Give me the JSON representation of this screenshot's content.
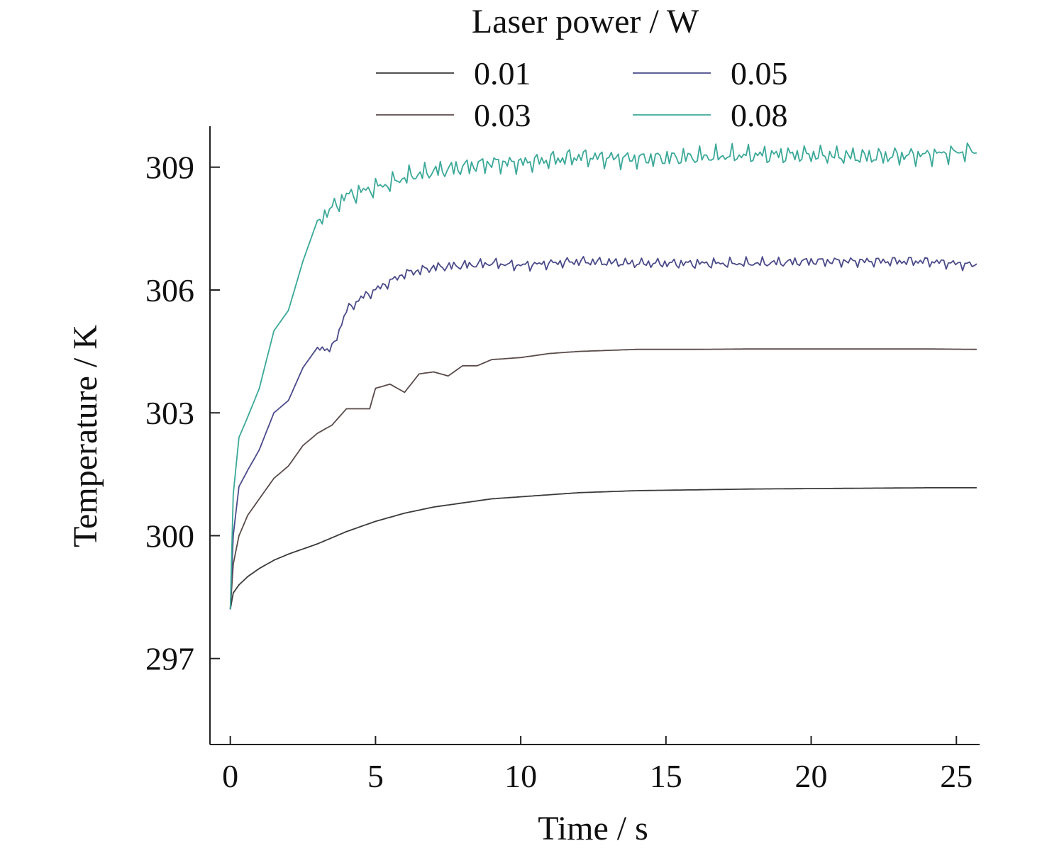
{
  "chart_data": {
    "type": "line",
    "title": "",
    "xlabel": "Time / s",
    "ylabel": "Temperature / K",
    "xlim": [
      -0.7,
      25.8
    ],
    "ylim": [
      294.9,
      310.0
    ],
    "xticks": [
      0,
      5,
      10,
      15,
      20,
      25
    ],
    "yticks": [
      297,
      300,
      303,
      306,
      309
    ],
    "grid": false,
    "legend": {
      "title": "Laser power / W",
      "placement": "top-center",
      "columns": 2,
      "entries": [
        "0.01",
        "0.05",
        "0.03",
        "0.08"
      ]
    },
    "series": [
      {
        "name": "0.01",
        "color": "#3a3a3a",
        "x": [
          0,
          0.1,
          0.3,
          0.6,
          1,
          1.5,
          2,
          3,
          4,
          5,
          6,
          7,
          8,
          9,
          10,
          12,
          14,
          16,
          18,
          20,
          22,
          24,
          25.7
        ],
        "y": [
          298.2,
          298.6,
          298.8,
          299.0,
          299.2,
          299.4,
          299.55,
          299.8,
          300.1,
          300.35,
          300.55,
          300.7,
          300.8,
          300.9,
          300.95,
          301.05,
          301.1,
          301.12,
          301.14,
          301.15,
          301.16,
          301.17,
          301.17
        ]
      },
      {
        "name": "0.03",
        "color": "#5a4a4a",
        "x": [
          0,
          0.1,
          0.3,
          0.6,
          1,
          1.5,
          2,
          2.5,
          3,
          3.5,
          4,
          4.5,
          4.8,
          5,
          5.5,
          6,
          6.5,
          7,
          7.5,
          8,
          8.5,
          9,
          10,
          11,
          12,
          14,
          16,
          18,
          20,
          22,
          24,
          25.7
        ],
        "y": [
          298.2,
          299.3,
          300.0,
          300.5,
          300.9,
          301.4,
          301.7,
          302.2,
          302.5,
          302.7,
          303.1,
          303.1,
          303.1,
          303.6,
          303.7,
          303.5,
          303.95,
          304.0,
          303.9,
          304.15,
          304.15,
          304.3,
          304.35,
          304.45,
          304.5,
          304.55,
          304.55,
          304.56,
          304.56,
          304.56,
          304.56,
          304.55
        ]
      },
      {
        "name": "0.05",
        "color": "#4a4a8a",
        "x": [
          0,
          0.1,
          0.3,
          0.6,
          1,
          1.5,
          2,
          2.5,
          3,
          3.5,
          4,
          4.5,
          5,
          5.5,
          6,
          7,
          8,
          9,
          10,
          12,
          14,
          16,
          18,
          20,
          22,
          24,
          25.7
        ],
        "y": [
          298.2,
          300.0,
          301.2,
          301.6,
          302.1,
          303.0,
          303.3,
          304.1,
          304.6,
          304.55,
          305.5,
          305.8,
          306.0,
          306.2,
          306.4,
          306.55,
          306.6,
          306.65,
          306.6,
          306.7,
          306.65,
          306.65,
          306.65,
          306.7,
          306.7,
          306.7,
          306.6
        ]
      },
      {
        "name": "0.08",
        "color": "#3aa898",
        "x": [
          0,
          0.1,
          0.3,
          0.6,
          1,
          1.5,
          2,
          2.5,
          3,
          3.5,
          4,
          4.5,
          5,
          5.5,
          6,
          7,
          8,
          9,
          10,
          12,
          14,
          16,
          18,
          20,
          22,
          24,
          25.7
        ],
        "y": [
          298.2,
          301.0,
          302.4,
          302.9,
          303.6,
          305.0,
          305.5,
          306.7,
          307.7,
          308.0,
          308.3,
          308.4,
          308.5,
          308.6,
          308.75,
          308.9,
          309.0,
          309.1,
          309.1,
          309.25,
          309.2,
          309.25,
          309.3,
          309.3,
          309.25,
          309.3,
          309.4
        ]
      }
    ]
  }
}
